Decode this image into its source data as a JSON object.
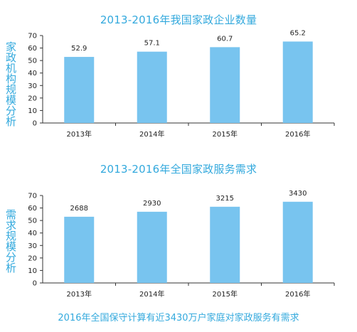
{
  "chart_data": [
    {
      "type": "bar",
      "title": "2013-2016年我国家政企业数量",
      "ylabel": "家政机构规模分析",
      "xlabel": "",
      "categories": [
        "2013年",
        "2014年",
        "2015年",
        "2016年"
      ],
      "values": [
        52.9,
        57.1,
        60.7,
        65.2
      ],
      "value_labels": [
        "52.9",
        "57.1",
        "60.7",
        "65.2"
      ],
      "ylim": [
        0,
        70
      ],
      "yticks": [
        "0",
        "10",
        "20",
        "30",
        "40",
        "50",
        "60",
        "70"
      ],
      "grid": false,
      "bar_color": "#78c4ef"
    },
    {
      "type": "bar",
      "title": "2013-2016年全国家政服务需求",
      "ylabel": "需求规模分析",
      "xlabel": "",
      "categories": [
        "2013年",
        "2014年",
        "2015年",
        "2016年"
      ],
      "values": [
        2688,
        2930,
        3215,
        3430
      ],
      "value_labels": [
        "2688",
        "2930",
        "3215",
        "3430"
      ],
      "bar_heights_on_axis": [
        53,
        57,
        61,
        65
      ],
      "ylim": [
        0,
        70
      ],
      "yticks": [
        "0",
        "10",
        "20",
        "30",
        "40",
        "50",
        "60",
        "70"
      ],
      "grid": false,
      "bar_color": "#78c4ef"
    }
  ],
  "footnote": "2016年全国保守计算有近3430万户家庭对家政服务有需求",
  "colors": {
    "accent": "#33a9dd",
    "bar": "#78c4ef",
    "axis": "#333333"
  }
}
